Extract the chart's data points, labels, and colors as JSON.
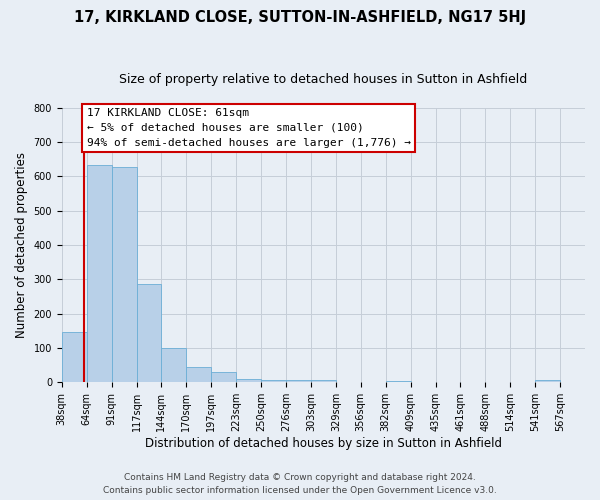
{
  "title": "17, KIRKLAND CLOSE, SUTTON-IN-ASHFIELD, NG17 5HJ",
  "subtitle": "Size of property relative to detached houses in Sutton in Ashfield",
  "xlabel": "Distribution of detached houses by size in Sutton in Ashfield",
  "ylabel": "Number of detached properties",
  "bin_labels": [
    "38sqm",
    "64sqm",
    "91sqm",
    "117sqm",
    "144sqm",
    "170sqm",
    "197sqm",
    "223sqm",
    "250sqm",
    "276sqm",
    "303sqm",
    "329sqm",
    "356sqm",
    "382sqm",
    "409sqm",
    "435sqm",
    "461sqm",
    "488sqm",
    "514sqm",
    "541sqm",
    "567sqm"
  ],
  "bar_values": [
    148,
    632,
    627,
    287,
    100,
    44,
    31,
    10,
    7,
    7,
    7,
    0,
    0,
    3,
    0,
    0,
    0,
    0,
    0,
    6,
    0
  ],
  "bar_color": "#b8d0e8",
  "bar_edge_color": "#6baed6",
  "annotation_box_text": "17 KIRKLAND CLOSE: 61sqm\n← 5% of detached houses are smaller (100)\n94% of semi-detached houses are larger (1,776) →",
  "annotation_box_facecolor": "#ffffff",
  "annotation_box_edgecolor": "#cc0000",
  "red_line_color": "#cc0000",
  "ylim": [
    0,
    800
  ],
  "yticks": [
    0,
    100,
    200,
    300,
    400,
    500,
    600,
    700,
    800
  ],
  "footer_line1": "Contains HM Land Registry data © Crown copyright and database right 2024.",
  "footer_line2": "Contains public sector information licensed under the Open Government Licence v3.0.",
  "background_color": "#e8eef5",
  "plot_bg_color": "#e8eef5",
  "grid_color": "#c5cdd8",
  "title_fontsize": 10.5,
  "subtitle_fontsize": 9,
  "tick_fontsize": 7,
  "axis_label_fontsize": 8.5,
  "annotation_fontsize": 8,
  "footer_fontsize": 6.5,
  "bin_sqm": [
    38,
    64,
    91,
    117,
    144,
    170,
    197,
    223,
    250,
    276,
    303,
    329,
    356,
    382,
    409,
    435,
    461,
    488,
    514,
    541,
    567
  ],
  "property_sqm": 61
}
